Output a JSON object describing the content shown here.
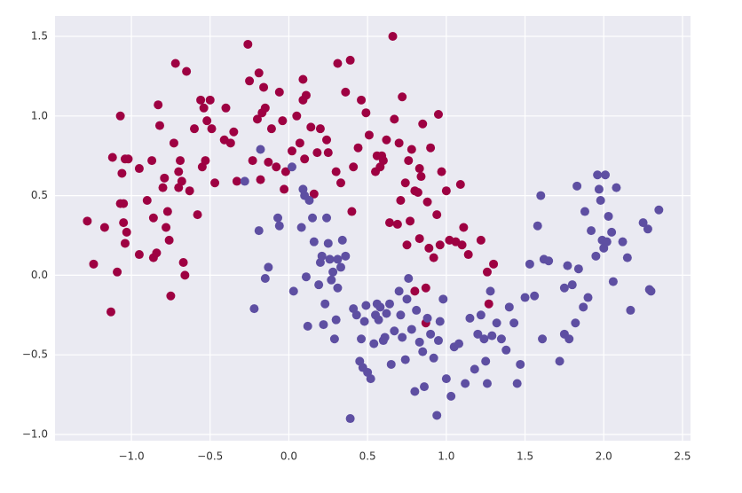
{
  "chart_data": {
    "type": "scatter",
    "series": [
      {
        "color": "#9e0142",
        "x": [
          -1.28,
          -1.24,
          -1.17,
          -1.13,
          -1.12,
          -1.09,
          -1.07,
          -1.05,
          -1.06,
          -1.05,
          -1.04,
          -1.03,
          -1.02,
          -1.07,
          -1.04,
          -0.95,
          -0.95,
          -0.9,
          -0.87,
          -0.86,
          -0.86,
          -0.84,
          -0.83,
          -0.82,
          -0.8,
          -0.79,
          -0.78,
          -0.77,
          -0.76,
          -0.75,
          -0.73,
          -0.72,
          -0.7,
          -0.7,
          -0.69,
          -0.68,
          -0.67,
          -0.66,
          -0.65,
          -0.63,
          -0.6,
          -0.58,
          -0.56,
          -0.55,
          -0.54,
          -0.53,
          -0.52,
          -0.5,
          -0.49,
          -0.47,
          -0.41,
          -0.4,
          -0.37,
          -0.35,
          -0.33,
          -0.26,
          -0.25,
          -0.23,
          -0.2,
          -0.19,
          -0.18,
          -0.17,
          -0.16,
          -0.15,
          -0.13,
          -0.11,
          -0.08,
          -0.06,
          -0.04,
          -0.03,
          -0.02,
          0.02,
          0.05,
          0.07,
          0.09,
          0.09,
          0.1,
          0.11,
          0.14,
          0.16,
          0.18,
          0.2,
          0.24,
          0.25,
          0.3,
          0.31,
          0.33,
          0.36,
          0.39,
          0.4,
          0.41,
          0.44,
          0.46,
          0.49,
          0.51,
          0.55,
          0.56,
          0.58,
          0.59,
          0.6,
          0.62,
          0.64,
          0.66,
          0.67,
          0.69,
          0.7,
          0.71,
          0.72,
          0.74,
          0.75,
          0.76,
          0.77,
          0.78,
          0.8,
          0.82,
          0.83,
          0.83,
          0.84,
          0.85,
          0.87,
          0.88,
          0.89,
          0.9,
          0.92,
          0.94,
          0.95,
          0.96,
          0.97,
          1.0,
          1.02,
          1.06,
          1.09,
          1.1,
          1.11,
          1.14,
          1.22,
          1.26,
          1.27,
          1.3,
          0.8,
          0.87
        ],
        "values": [
          0.34,
          0.07,
          0.3,
          -0.23,
          0.74,
          0.02,
          0.45,
          0.45,
          0.64,
          0.33,
          0.2,
          0.27,
          0.73,
          1.0,
          0.73,
          0.67,
          0.13,
          0.47,
          0.72,
          0.36,
          0.11,
          0.14,
          1.07,
          0.94,
          0.55,
          0.61,
          0.3,
          0.4,
          0.22,
          -0.13,
          0.83,
          1.33,
          0.55,
          0.65,
          0.72,
          0.59,
          0.08,
          0.0,
          1.28,
          0.53,
          0.92,
          0.38,
          1.1,
          0.68,
          1.05,
          0.72,
          0.97,
          1.1,
          0.92,
          0.58,
          0.85,
          1.05,
          0.83,
          0.9,
          0.59,
          1.45,
          1.22,
          0.72,
          0.98,
          1.27,
          0.6,
          1.02,
          1.18,
          1.05,
          0.71,
          0.92,
          0.68,
          1.15,
          0.97,
          0.54,
          0.65,
          0.78,
          1.0,
          0.83,
          1.23,
          1.1,
          0.73,
          1.13,
          0.93,
          0.51,
          0.77,
          0.92,
          0.85,
          0.77,
          0.65,
          1.33,
          0.58,
          1.15,
          1.35,
          0.4,
          0.68,
          0.8,
          1.1,
          1.02,
          0.88,
          0.65,
          0.75,
          0.68,
          0.75,
          0.72,
          0.85,
          0.33,
          1.5,
          0.98,
          0.32,
          0.83,
          0.47,
          1.12,
          0.58,
          0.19,
          0.72,
          0.34,
          0.79,
          0.53,
          0.52,
          0.67,
          0.23,
          0.62,
          0.95,
          -0.08,
          0.46,
          0.17,
          0.8,
          0.11,
          0.38,
          1.01,
          0.19,
          0.65,
          0.53,
          0.22,
          0.21,
          0.57,
          0.19,
          0.3,
          0.13,
          0.22,
          0.02,
          -0.18,
          0.07,
          -0.1,
          -0.3
        ]
      },
      {
        "color": "#5e4fa2",
        "x": [
          -0.28,
          -0.22,
          -0.19,
          -0.18,
          -0.15,
          -0.13,
          -0.07,
          -0.06,
          0.02,
          0.03,
          0.08,
          0.09,
          0.1,
          0.11,
          0.12,
          0.13,
          0.15,
          0.16,
          0.19,
          0.2,
          0.21,
          0.22,
          0.23,
          0.24,
          0.25,
          0.26,
          0.27,
          0.28,
          0.29,
          0.3,
          0.31,
          0.31,
          0.33,
          0.34,
          0.36,
          0.39,
          0.41,
          0.43,
          0.45,
          0.46,
          0.47,
          0.48,
          0.49,
          0.5,
          0.52,
          0.54,
          0.55,
          0.56,
          0.57,
          0.58,
          0.6,
          0.61,
          0.62,
          0.64,
          0.65,
          0.67,
          0.7,
          0.71,
          0.72,
          0.74,
          0.75,
          0.76,
          0.78,
          0.8,
          0.81,
          0.83,
          0.85,
          0.86,
          0.88,
          0.9,
          0.92,
          0.94,
          0.95,
          0.96,
          0.98,
          1.0,
          1.03,
          1.05,
          1.08,
          1.12,
          1.15,
          1.18,
          1.2,
          1.22,
          1.24,
          1.25,
          1.26,
          1.28,
          1.29,
          1.32,
          1.35,
          1.38,
          1.4,
          1.43,
          1.45,
          1.47,
          1.5,
          1.53,
          1.56,
          1.58,
          1.6,
          1.61,
          1.62,
          1.65,
          1.72,
          1.75,
          1.77,
          1.78,
          1.8,
          1.83,
          1.84,
          1.87,
          1.88,
          1.9,
          1.92,
          1.95,
          1.96,
          1.97,
          1.98,
          1.99,
          2.0,
          2.01,
          2.02,
          2.03,
          2.05,
          2.06,
          2.08,
          2.12,
          2.15,
          2.17,
          2.25,
          2.28,
          2.29,
          2.3,
          2.35,
          1.75,
          1.82
        ],
        "values": [
          0.59,
          -0.21,
          0.28,
          0.79,
          -0.02,
          0.05,
          0.36,
          0.31,
          0.68,
          -0.1,
          0.3,
          0.54,
          0.5,
          -0.01,
          -0.32,
          0.47,
          0.36,
          0.21,
          -0.06,
          0.08,
          0.12,
          -0.31,
          -0.18,
          0.36,
          0.2,
          0.1,
          -0.03,
          0.02,
          -0.4,
          -0.28,
          0.1,
          -0.08,
          0.05,
          0.22,
          0.12,
          -0.9,
          -0.21,
          -0.25,
          -0.54,
          -0.4,
          -0.58,
          -0.29,
          -0.19,
          -0.61,
          -0.65,
          -0.43,
          -0.25,
          -0.18,
          -0.28,
          -0.2,
          -0.41,
          -0.39,
          -0.24,
          -0.18,
          -0.56,
          -0.35,
          -0.1,
          -0.25,
          -0.39,
          -0.53,
          -0.15,
          -0.02,
          -0.34,
          -0.73,
          -0.22,
          -0.42,
          -0.48,
          -0.7,
          -0.27,
          -0.37,
          -0.52,
          -0.88,
          -0.41,
          -0.29,
          -0.15,
          -0.65,
          -0.76,
          -0.45,
          -0.43,
          -0.68,
          -0.27,
          -0.59,
          -0.37,
          -0.25,
          -0.4,
          -0.54,
          -0.68,
          -0.1,
          -0.38,
          -0.3,
          -0.4,
          -0.47,
          -0.2,
          -0.3,
          -0.68,
          -0.56,
          -0.14,
          0.07,
          -0.13,
          0.31,
          0.5,
          -0.4,
          0.1,
          0.09,
          -0.54,
          -0.08,
          0.06,
          -0.4,
          -0.06,
          0.56,
          0.04,
          -0.2,
          0.4,
          -0.14,
          0.28,
          0.12,
          0.63,
          0.54,
          0.47,
          0.22,
          0.17,
          0.63,
          0.21,
          0.37,
          0.27,
          -0.04,
          0.55,
          0.21,
          0.11,
          -0.22,
          0.33,
          0.29,
          -0.09,
          -0.1,
          0.41,
          -0.37,
          -0.3
        ]
      }
    ],
    "xlim": [
      -1.485,
      2.551
    ],
    "ylim": [
      -1.039,
      1.628
    ],
    "xticks": [
      {
        "value": -1.0,
        "label": "−1.0"
      },
      {
        "value": -0.5,
        "label": "−0.5"
      },
      {
        "value": 0,
        "label": "0.0"
      },
      0.5,
      {
        "value": 1,
        "label": "1.0"
      },
      1.5,
      {
        "value": 2,
        "label": "2.0"
      },
      2.5
    ],
    "yticks": [
      {
        "value": -1.0,
        "label": "−1.0"
      },
      {
        "value": -0.5,
        "label": "−0.5"
      },
      {
        "value": 0,
        "label": "0.0"
      },
      0.5,
      {
        "value": 1,
        "label": "1.0"
      },
      1.5
    ],
    "grid": true
  }
}
